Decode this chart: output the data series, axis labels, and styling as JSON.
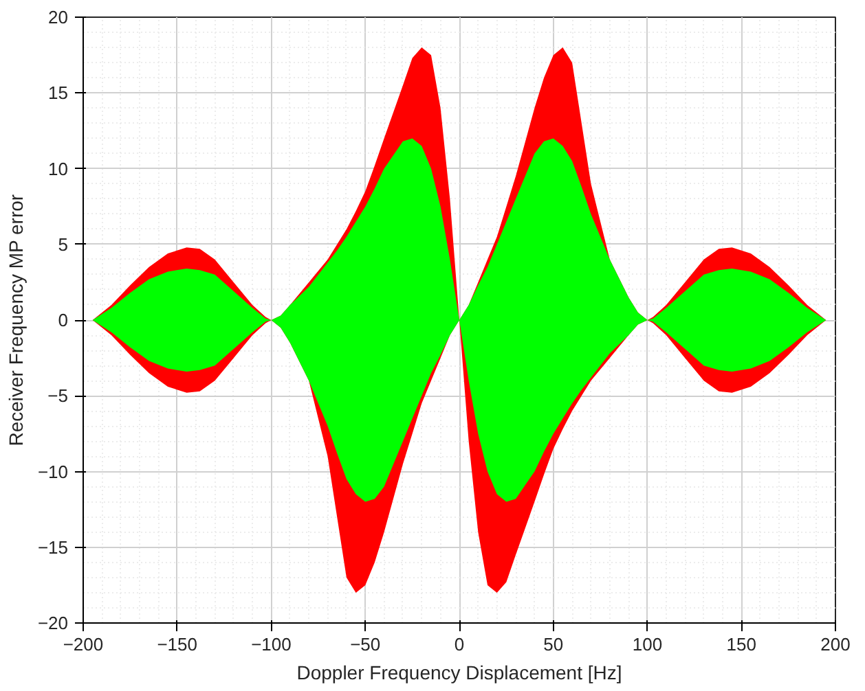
{
  "chart_data": {
    "type": "area",
    "xlabel": "Doppler Frequency Displacement [Hz]",
    "ylabel": "Receiver Frequency MP error",
    "x": [
      -195,
      -185,
      -175,
      -165,
      -155,
      -145,
      -138,
      -130,
      -120,
      -110,
      -103,
      -100,
      -95,
      -90,
      -80,
      -70,
      -65,
      -60,
      -55,
      -50,
      -45,
      -40,
      -30,
      -25,
      -20,
      -15,
      -10,
      -5,
      0,
      5,
      10,
      15,
      20,
      25,
      30,
      40,
      45,
      50,
      55,
      60,
      65,
      70,
      80,
      90,
      95,
      100,
      103,
      110,
      120,
      130,
      138,
      145,
      155,
      165,
      175,
      185,
      195
    ],
    "series": [
      {
        "color": "#ff0000",
        "values": [
          0,
          1.0,
          2.3,
          3.5,
          4.4,
          4.8,
          4.7,
          4.0,
          2.5,
          1.0,
          0.2,
          0,
          0.3,
          1.0,
          2.5,
          4.0,
          5.0,
          6.0,
          7.2,
          8.5,
          10.2,
          12,
          15.5,
          17.3,
          18,
          17.5,
          14,
          8,
          0,
          1,
          2.5,
          4,
          5.5,
          7.5,
          9.5,
          14,
          16,
          17.5,
          18,
          17,
          13,
          9,
          4,
          1.5,
          0.5,
          0,
          0.2,
          1.0,
          2.5,
          4.0,
          4.7,
          4.8,
          4.4,
          3.5,
          2.3,
          1.0,
          0
        ]
      },
      {
        "color": "#ff0000",
        "values": [
          0,
          -1.0,
          -2.3,
          -3.5,
          -4.4,
          -4.8,
          -4.7,
          -4.0,
          -2.5,
          -1.0,
          -0.2,
          0,
          -0.5,
          -1.5,
          -4,
          -9,
          -13,
          -17,
          -18,
          -17.5,
          -16,
          -14,
          -9.5,
          -7.5,
          -5.5,
          -4,
          -2.5,
          -1,
          0,
          -8,
          -14,
          -17.5,
          -18,
          -17.3,
          -15.5,
          -12,
          -10.2,
          -8.5,
          -7.2,
          -6,
          -5,
          -4,
          -2.5,
          -1,
          -0.3,
          0,
          -0.2,
          -1,
          -2.5,
          -4,
          -4.7,
          -4.8,
          -4.4,
          -3.5,
          -2.3,
          -1,
          0
        ]
      },
      {
        "color": "#00ff00",
        "values": [
          0,
          0.8,
          1.8,
          2.7,
          3.2,
          3.4,
          3.3,
          3.0,
          1.9,
          0.8,
          0.1,
          0,
          0.3,
          1.0,
          2.2,
          3.8,
          4.6,
          5.5,
          6.5,
          7.5,
          8.7,
          10,
          11.8,
          12,
          11.5,
          10,
          7.5,
          4,
          0,
          1,
          2.3,
          3.5,
          5,
          6.5,
          8,
          11,
          11.8,
          12,
          11.5,
          10.5,
          8.8,
          7,
          4,
          1.5,
          0.5,
          0,
          0.1,
          0.8,
          1.9,
          3.0,
          3.3,
          3.4,
          3.2,
          2.7,
          1.8,
          0.8,
          0
        ]
      },
      {
        "color": "#00ff00",
        "values": [
          0,
          -0.8,
          -1.8,
          -2.7,
          -3.2,
          -3.4,
          -3.3,
          -3.0,
          -1.9,
          -0.8,
          -0.1,
          0,
          -0.5,
          -1.5,
          -4,
          -7,
          -8.8,
          -10.5,
          -11.5,
          -12,
          -11.8,
          -11,
          -8,
          -6.5,
          -5,
          -3.5,
          -2.3,
          -1,
          0,
          -4,
          -7.5,
          -10,
          -11.5,
          -12,
          -11.8,
          -10,
          -8.7,
          -7.5,
          -6.5,
          -5.5,
          -4.6,
          -3.8,
          -2.2,
          -1,
          -0.3,
          0,
          -0.1,
          -0.8,
          -1.9,
          -3,
          -3.3,
          -3.4,
          -3.2,
          -2.7,
          -1.8,
          -0.8,
          0
        ]
      }
    ],
    "xlim": [
      -200,
      200
    ],
    "ylim": [
      -20,
      20
    ],
    "xticks": [
      -200,
      -150,
      -100,
      -50,
      0,
      50,
      100,
      150,
      200
    ],
    "yticks": [
      -20,
      -15,
      -10,
      -5,
      0,
      5,
      10,
      15,
      20
    ],
    "grid": true
  }
}
